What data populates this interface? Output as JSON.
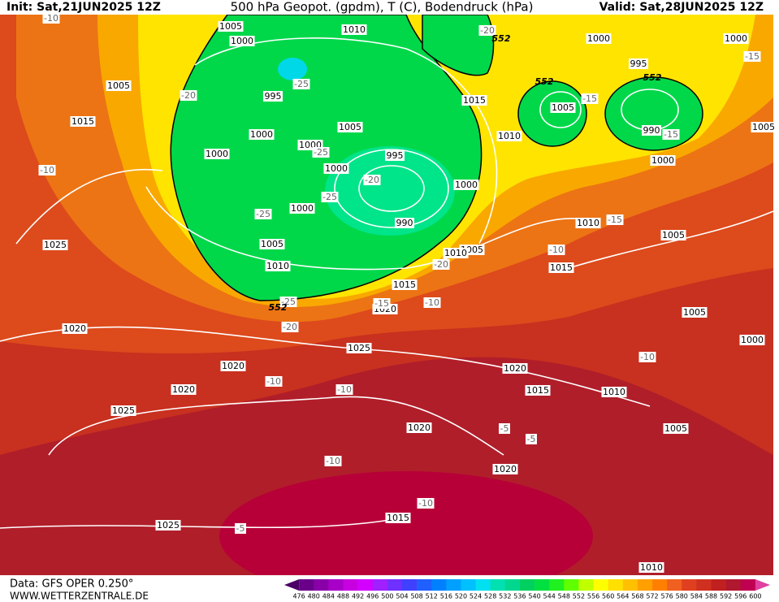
{
  "header": {
    "init": "Init: Sat,21JUN2025 12Z",
    "title": "500 hPa Geopot. (gpdm), T (C), Bodendruck (hPa)",
    "valid": "Valid: Sat,28JUN2025 12Z"
  },
  "footer": {
    "data": "Data: GFS OPER 0.250°",
    "site": "WWW.WETTERZENTRALE.DE"
  },
  "colorbar": {
    "ticks": [
      476,
      480,
      484,
      488,
      492,
      496,
      500,
      504,
      508,
      512,
      516,
      520,
      524,
      528,
      532,
      536,
      540,
      544,
      548,
      552,
      556,
      560,
      564,
      568,
      572,
      576,
      580,
      584,
      588,
      592,
      596,
      600
    ],
    "colors": [
      "#4b0066",
      "#6a008a",
      "#8a00a8",
      "#a800c8",
      "#c800e0",
      "#d400ff",
      "#a020ff",
      "#7030ff",
      "#4040ff",
      "#2060ff",
      "#0080ff",
      "#00a0ff",
      "#00c0ff",
      "#00e0f0",
      "#00e0b0",
      "#00d890",
      "#00d060",
      "#00e040",
      "#20f020",
      "#60ff00",
      "#c0ff00",
      "#ffff00",
      "#ffe000",
      "#ffc000",
      "#ffa000",
      "#ff8000",
      "#f06020",
      "#e04020",
      "#d03020",
      "#c02020",
      "#b01830",
      "#c00050",
      "#e040a0"
    ]
  },
  "map": {
    "isobar_labels": [
      1005,
      1000,
      1010,
      1005,
      1015,
      1000,
      995,
      1000,
      1000,
      1005,
      1000,
      995,
      1000,
      990,
      1000,
      1005,
      1010,
      1015,
      1010,
      1000,
      995,
      1005,
      990,
      1000,
      1000,
      1005,
      1025,
      1010,
      1005,
      1010,
      1015,
      1005,
      1015,
      1020,
      1020,
      1005,
      1000,
      1025,
      1020,
      1020,
      1020,
      1015,
      1010,
      1025,
      1020,
      1005,
      1020,
      1015,
      1025,
      1010
    ],
    "temperature_labels": [
      -10,
      -20,
      -25,
      -25,
      -20,
      -25,
      -25,
      -15,
      -15,
      -15,
      -20,
      -10,
      -10,
      -15,
      -20,
      -25,
      -15,
      -10,
      -20,
      -10,
      -10,
      -10,
      -5,
      -5,
      -10,
      -10,
      -5
    ],
    "geopotential_labels": [
      552,
      552,
      552,
      552
    ]
  }
}
